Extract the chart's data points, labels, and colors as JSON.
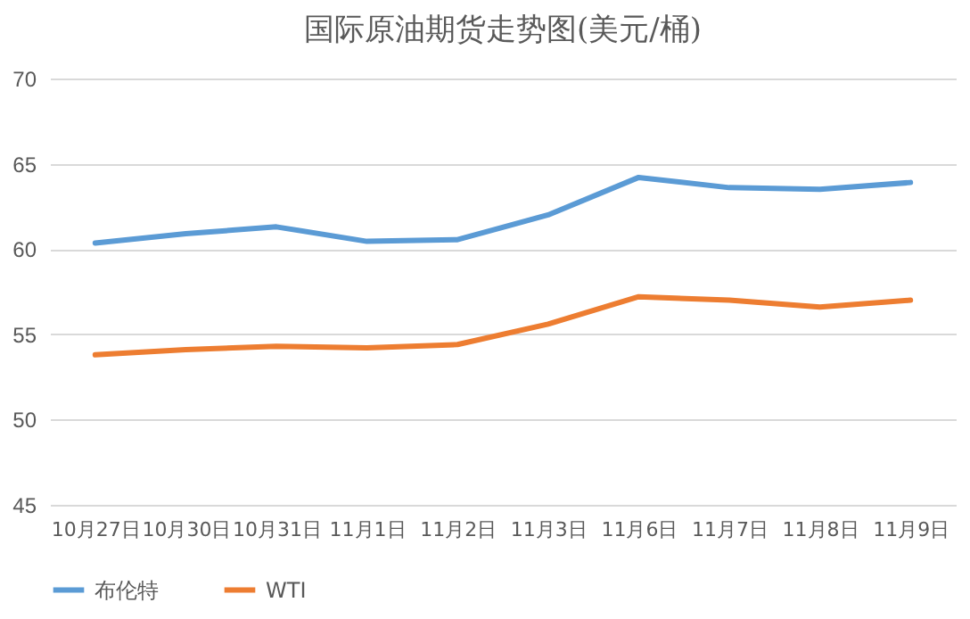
{
  "chart_data": {
    "type": "line",
    "title": "国际原油期货走势图(美元/桶)",
    "categories": [
      "10月27日",
      "10月30日",
      "10月31日",
      "11月1日",
      "11月2日",
      "11月3日",
      "11月6日",
      "11月7日",
      "11月8日",
      "11月9日"
    ],
    "series": [
      {
        "name": "布伦特",
        "color": "#5b9bd5",
        "values": [
          60.35,
          60.9,
          61.3,
          60.45,
          60.55,
          62.0,
          64.2,
          63.6,
          63.5,
          63.9
        ]
      },
      {
        "name": "WTI",
        "color": "#ed7d31",
        "values": [
          53.8,
          54.1,
          54.3,
          54.2,
          54.4,
          55.6,
          57.2,
          57.0,
          56.6,
          57.0
        ]
      }
    ],
    "ylim": [
      45,
      70
    ],
    "yticks": [
      45,
      50,
      55,
      60,
      65,
      70
    ],
    "grid": "y",
    "legend": "bottom",
    "marker": "none",
    "line_style": "solid"
  }
}
